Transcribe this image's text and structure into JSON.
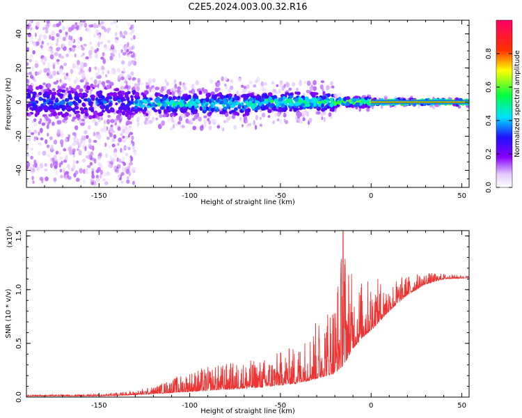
{
  "figure": {
    "title": "C2E5.2024.003.00.32.R16"
  },
  "chart_data": [
    {
      "type": "heatmap",
      "title": "C2E5.2024.003.00.32.R16",
      "xlabel": "Height of straight line (km)",
      "ylabel": "Frequency (Hz)",
      "xlim": [
        -190,
        54
      ],
      "ylim": [
        -50,
        48
      ],
      "x_ticks": [
        -150,
        -100,
        -50,
        0,
        50
      ],
      "x_tick_labels": [
        "-150",
        "-100",
        "-50",
        "0",
        "50"
      ],
      "y_ticks": [
        -40,
        -20,
        0,
        20,
        40
      ],
      "y_tick_labels": [
        "-40",
        "-20",
        "0",
        "20",
        "40"
      ],
      "colorbar": {
        "label": "Normalized spectral amplitude",
        "range": [
          0,
          1
        ],
        "ticks": [
          0.0,
          0.2,
          0.4,
          0.6,
          0.8
        ],
        "tick_labels": [
          "0.0",
          "0.2",
          "0.4",
          "0.6",
          "0.8"
        ],
        "colormap": "rainbow (white-violet-blue-cyan-green-yellow-red-magenta)"
      },
      "bands": [
        {
          "x_range": [
            -190,
            -130
          ],
          "center_hz": 0,
          "core_halfwidth_hz": 8,
          "spread_halfwidth_hz": 48,
          "peak_amplitude": 0.35
        },
        {
          "x_range": [
            -130,
            -60
          ],
          "center_hz": -1,
          "core_halfwidth_hz": 5,
          "spread_halfwidth_hz": 15,
          "peak_amplitude": 0.5
        },
        {
          "x_range": [
            -60,
            -20
          ],
          "center_hz": 0,
          "core_halfwidth_hz": 4,
          "spread_halfwidth_hz": 12,
          "peak_amplitude": 0.55
        },
        {
          "x_range": [
            -20,
            0
          ],
          "center_hz": 0,
          "core_halfwidth_hz": 2,
          "spread_halfwidth_hz": 5,
          "peak_amplitude": 0.65
        },
        {
          "x_range": [
            0,
            54
          ],
          "center_hz": 0,
          "core_halfwidth_hz": 1,
          "spread_halfwidth_hz": 3,
          "peak_amplitude": 0.9
        }
      ]
    },
    {
      "type": "line",
      "xlabel": "Height of straight line (km)",
      "ylabel": "SNR (10 * v/v)",
      "y_scale_label": "(x10",
      "y_scale_exponent": "4",
      "xlim": [
        -190,
        54
      ],
      "ylim": [
        0,
        1.55
      ],
      "x_ticks": [
        -150,
        -100,
        -50,
        0,
        50
      ],
      "x_tick_labels": [
        "-150",
        "-100",
        "-50",
        "0",
        "50"
      ],
      "y_ticks": [
        0.0,
        0.5,
        1.0,
        1.5
      ],
      "y_tick_labels": [
        "0.0",
        "0.5",
        "1.0",
        "1.5"
      ],
      "series": [
        {
          "color": "#ee3333",
          "envelope": {
            "x": [
              -190,
              -150,
              -130,
              -120,
              -100,
              -80,
              -60,
              -40,
              -30,
              -20,
              -15,
              -10,
              -5,
              0,
              10,
              20,
              30,
              40,
              54
            ],
            "baseline": [
              0.01,
              0.01,
              0.02,
              0.03,
              0.05,
              0.07,
              0.09,
              0.13,
              0.17,
              0.22,
              0.3,
              0.45,
              0.55,
              0.62,
              0.8,
              0.95,
              1.05,
              1.1,
              1.11
            ],
            "peak": [
              0.02,
              0.03,
              0.06,
              0.1,
              0.25,
              0.32,
              0.36,
              0.5,
              0.72,
              1.0,
              1.55,
              1.1,
              1.1,
              1.12,
              1.08,
              1.14,
              1.16,
              1.15,
              1.13
            ]
          }
        }
      ]
    }
  ]
}
